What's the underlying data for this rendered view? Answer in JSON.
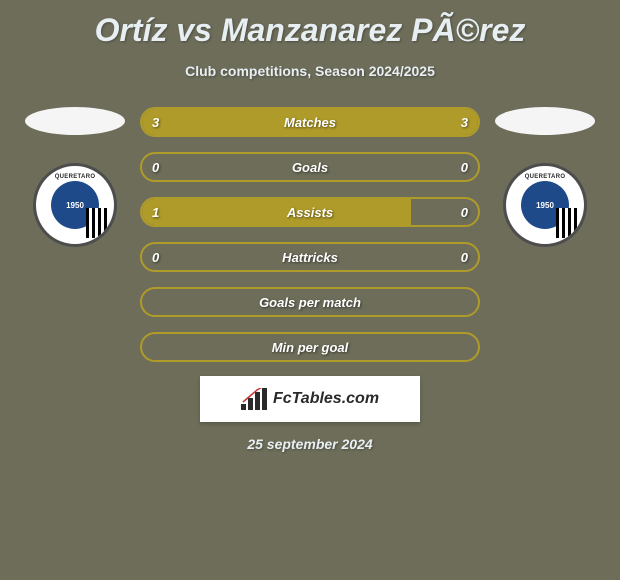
{
  "title": "Ortíz vs Manzanarez PÃ©rez",
  "subtitle": "Club competitions, Season 2024/2025",
  "date": "25 september 2024",
  "footer_brand": "FcTables.com",
  "colors": {
    "background": "#6d6d5a",
    "bar_fill": "#af9b29",
    "bar_border": "#af9b29",
    "text_light": "#e8eff3"
  },
  "player1": {
    "club_name": "QUERETARO",
    "badge_year": "1950"
  },
  "player2": {
    "club_name": "QUERETARO",
    "badge_year": "1950"
  },
  "stats": [
    {
      "label": "Matches",
      "left_value": "3",
      "right_value": "3",
      "left_fill_pct": 50,
      "right_fill_pct": 50,
      "show_values": true
    },
    {
      "label": "Goals",
      "left_value": "0",
      "right_value": "0",
      "left_fill_pct": 0,
      "right_fill_pct": 0,
      "show_values": true
    },
    {
      "label": "Assists",
      "left_value": "1",
      "right_value": "0",
      "left_fill_pct": 80,
      "right_fill_pct": 0,
      "show_values": true
    },
    {
      "label": "Hattricks",
      "left_value": "0",
      "right_value": "0",
      "left_fill_pct": 0,
      "right_fill_pct": 0,
      "show_values": true
    },
    {
      "label": "Goals per match",
      "left_value": "",
      "right_value": "",
      "left_fill_pct": 0,
      "right_fill_pct": 0,
      "show_values": false
    },
    {
      "label": "Min per goal",
      "left_value": "",
      "right_value": "",
      "left_fill_pct": 0,
      "right_fill_pct": 0,
      "show_values": false
    }
  ]
}
